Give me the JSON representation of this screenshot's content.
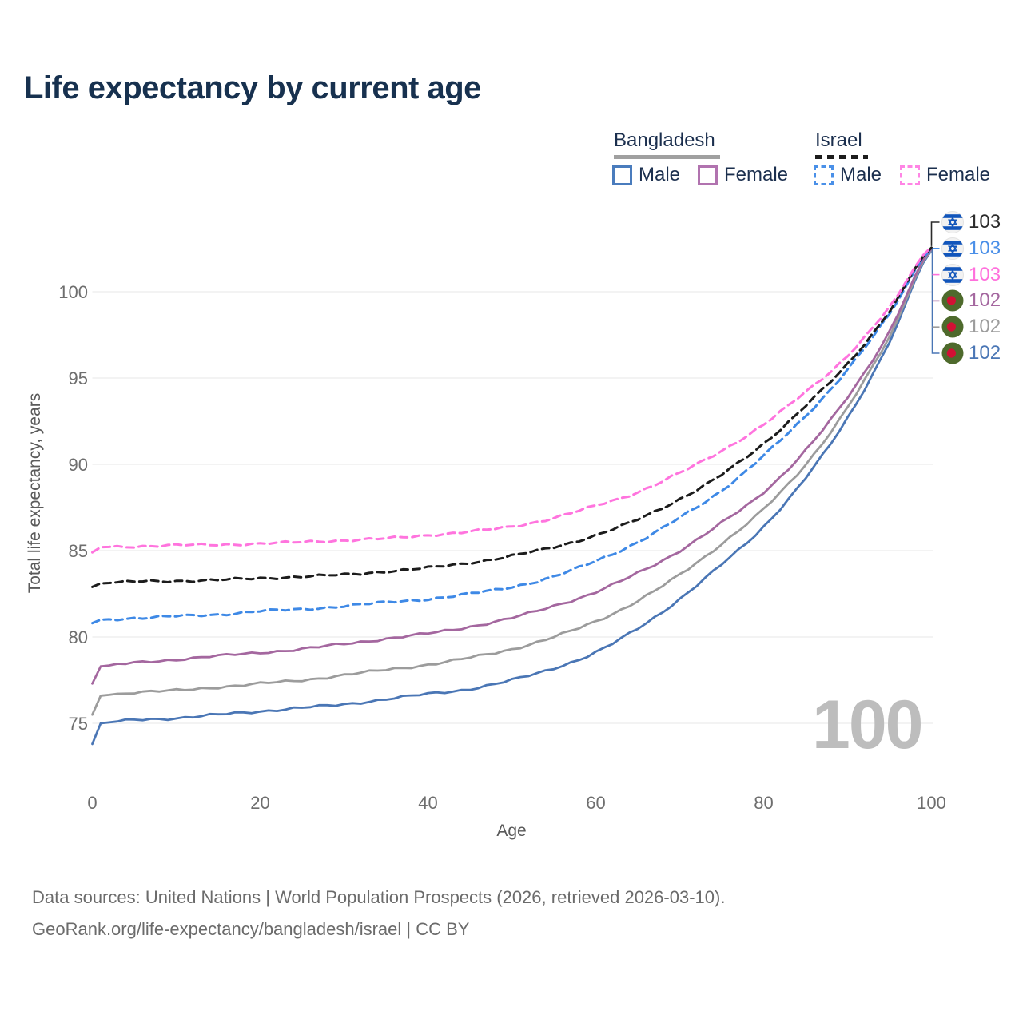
{
  "title": "Life expectancy by current age",
  "watermark": "100",
  "footer": {
    "line1": "Data sources: United Nations | World Population Prospects (2026, retrieved 2026-03-10).",
    "line2": "GeoRank.org/life-expectancy/bangladesh/israel | CC BY"
  },
  "legend": {
    "groups": [
      {
        "name": "Bangladesh",
        "line_color": "#a0a0a0",
        "line_style": "solid",
        "items": [
          {
            "label": "Male",
            "color": "#4a7cbd",
            "style": "solid"
          },
          {
            "label": "Female",
            "color": "#b173af",
            "style": "solid"
          }
        ]
      },
      {
        "name": "Israel",
        "line_color": "#1c1c1c",
        "line_style": "dashed",
        "items": [
          {
            "label": "Male",
            "color": "#4a90e8",
            "style": "dashed"
          },
          {
            "label": "Female",
            "color": "#ff85e5",
            "style": "dashed"
          }
        ]
      }
    ]
  },
  "end_labels": [
    {
      "flag": "israel",
      "value": "103",
      "color": "#2b2b2b"
    },
    {
      "flag": "israel",
      "value": "103",
      "color": "#4a8fe8"
    },
    {
      "flag": "israel",
      "value": "103",
      "color": "#ff70dc"
    },
    {
      "flag": "bangladesh",
      "value": "102",
      "color": "#a4679f"
    },
    {
      "flag": "bangladesh",
      "value": "102",
      "color": "#9c9c9c"
    },
    {
      "flag": "bangladesh",
      "value": "102",
      "color": "#4a76b5"
    }
  ],
  "chart_data": {
    "type": "line",
    "title": "Life expectancy by current age",
    "xlabel": "Age",
    "ylabel": "Total life expectancy, years",
    "xlim": [
      0,
      100
    ],
    "ylim": [
      73,
      103.5
    ],
    "x_ticks": [
      0,
      20,
      40,
      60,
      80,
      100
    ],
    "y_ticks": [
      100,
      95,
      90,
      85,
      80,
      75
    ],
    "grid": "horizontal",
    "legend_position": "top-right",
    "x": [
      0,
      1,
      5,
      10,
      15,
      20,
      25,
      30,
      35,
      40,
      45,
      50,
      55,
      60,
      65,
      70,
      75,
      80,
      85,
      90,
      95,
      100
    ],
    "series": [
      {
        "name": "Bangladesh Male",
        "country": "Bangladesh",
        "sex": "Male",
        "color": "#4a76b5",
        "dashed": false,
        "values": [
          73.8,
          75.0,
          75.2,
          75.3,
          75.5,
          75.7,
          75.9,
          76.1,
          76.4,
          76.7,
          77.0,
          77.5,
          78.2,
          79.1,
          80.5,
          82.2,
          84.2,
          86.4,
          89.2,
          92.7,
          97.1,
          102.4
        ]
      },
      {
        "name": "Bangladesh Total",
        "country": "Bangladesh",
        "sex": "Both",
        "color": "#9c9c9c",
        "dashed": false,
        "values": [
          75.5,
          76.6,
          76.8,
          76.9,
          77.1,
          77.3,
          77.5,
          77.8,
          78.1,
          78.4,
          78.8,
          79.3,
          80.0,
          80.9,
          82.1,
          83.6,
          85.4,
          87.4,
          90.0,
          93.3,
          97.4,
          102.45
        ]
      },
      {
        "name": "Bangladesh Female",
        "country": "Bangladesh",
        "sex": "Female",
        "color": "#a4679f",
        "dashed": false,
        "values": [
          77.3,
          78.3,
          78.5,
          78.7,
          78.9,
          79.1,
          79.3,
          79.6,
          79.9,
          80.2,
          80.6,
          81.1,
          81.8,
          82.6,
          83.7,
          85.0,
          86.6,
          88.4,
          90.8,
          93.9,
          97.7,
          102.5
        ]
      },
      {
        "name": "Israel Male",
        "country": "Israel",
        "sex": "Male",
        "color": "#3e89e6",
        "dashed": true,
        "values": [
          80.8,
          81.0,
          81.1,
          81.2,
          81.3,
          81.5,
          81.6,
          81.8,
          82.0,
          82.2,
          82.5,
          82.9,
          83.5,
          84.4,
          85.5,
          86.9,
          88.5,
          90.5,
          92.8,
          95.5,
          98.7,
          102.5
        ]
      },
      {
        "name": "Israel Total",
        "country": "Israel",
        "sex": "Both",
        "color": "#1c1c1c",
        "dashed": true,
        "values": [
          82.9,
          83.1,
          83.2,
          83.25,
          83.3,
          83.4,
          83.5,
          83.6,
          83.8,
          84.0,
          84.3,
          84.7,
          85.2,
          85.9,
          86.8,
          88.0,
          89.4,
          91.2,
          93.4,
          95.8,
          98.9,
          102.55
        ]
      },
      {
        "name": "Israel Female",
        "country": "Israel",
        "sex": "Female",
        "color": "#ff74de",
        "dashed": true,
        "values": [
          84.9,
          85.2,
          85.25,
          85.3,
          85.35,
          85.4,
          85.5,
          85.6,
          85.7,
          85.9,
          86.1,
          86.4,
          86.9,
          87.6,
          88.4,
          89.5,
          90.8,
          92.3,
          94.2,
          96.3,
          99.1,
          102.6
        ]
      }
    ]
  }
}
